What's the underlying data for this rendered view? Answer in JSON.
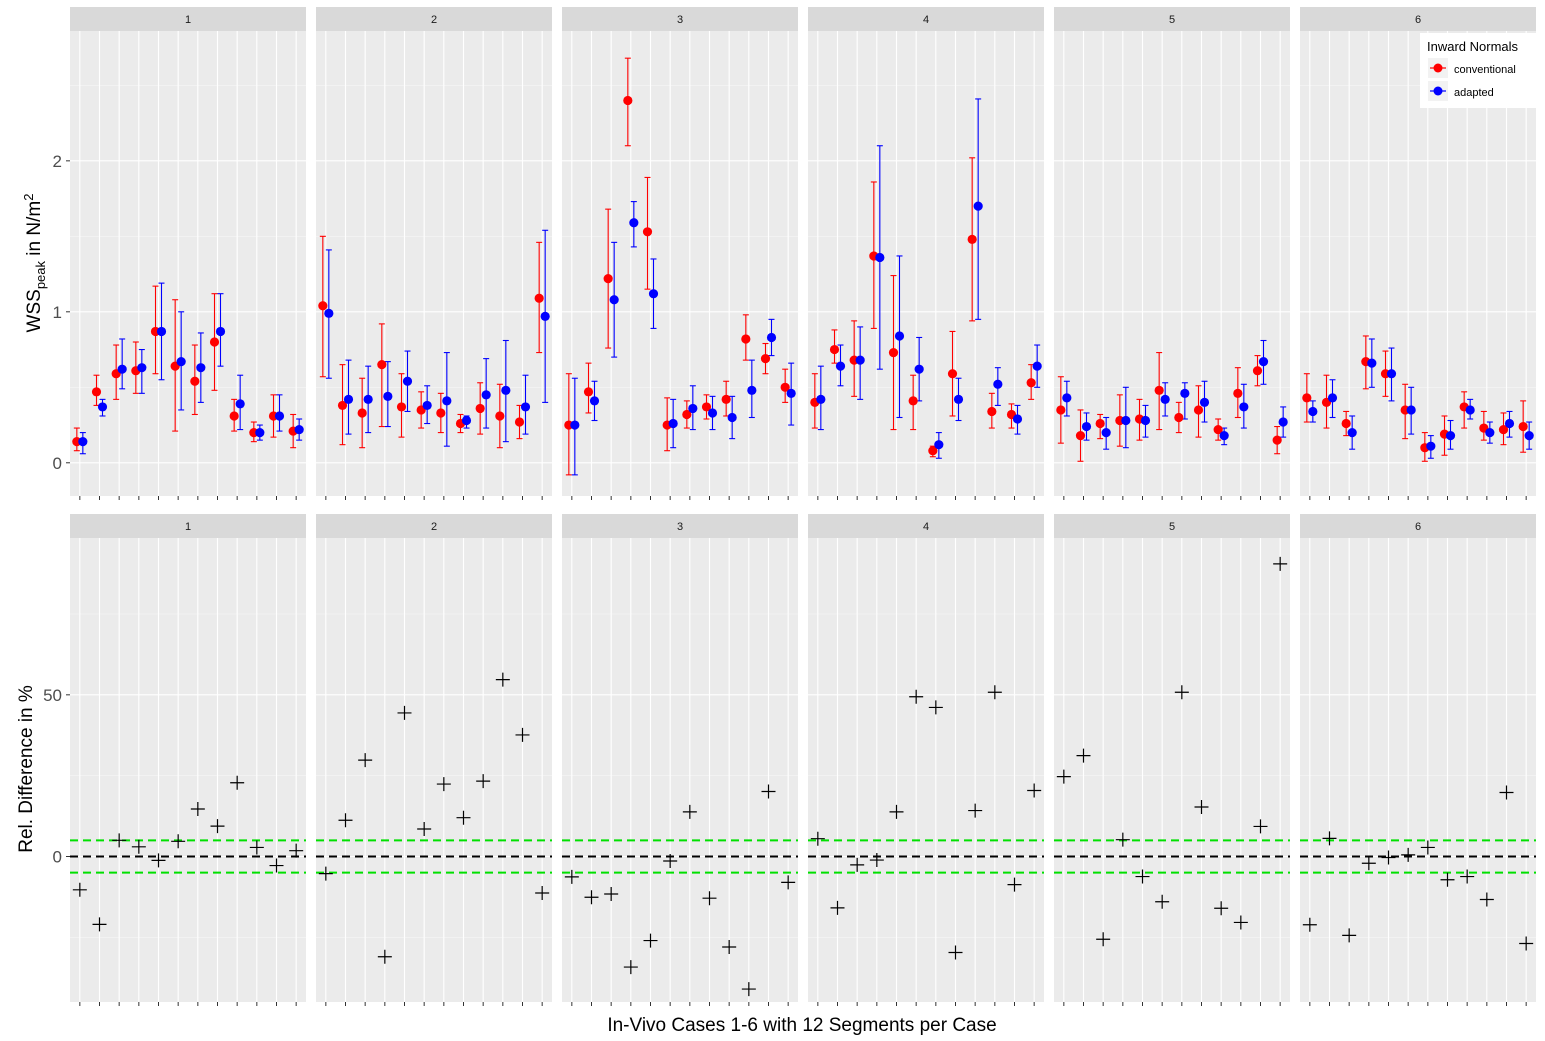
{
  "chart_data": [
    {
      "type": "scatter",
      "title": "",
      "ylabel": "WSS",
      "ylabel_sub": "peak",
      "ylabel_unit": " in N/m",
      "ylabel_sup": "2",
      "xlabel": "",
      "ylim": [
        -0.22,
        2.86
      ],
      "yticks": [
        0,
        1,
        2
      ],
      "ytick_labels": [
        "0",
        "1",
        "2"
      ],
      "facets": [
        "1",
        "2",
        "3",
        "4",
        "5",
        "6"
      ],
      "segments_per_facet": 12,
      "legend": {
        "title": "Inward Normals",
        "position": "top-right",
        "entries": [
          {
            "name": "conventional",
            "color": "#ff0000"
          },
          {
            "name": "adapted",
            "color": "#0000ff"
          }
        ]
      },
      "series": [
        {
          "name": "conventional",
          "color": "#ff0000",
          "values": [
            [
              0.14,
              0.47,
              0.59,
              0.61,
              0.87,
              0.64,
              0.54,
              0.8,
              0.31,
              0.2,
              0.31,
              0.21
            ],
            [
              1.04,
              0.38,
              0.33,
              0.65,
              0.37,
              0.35,
              0.33,
              0.26,
              0.36,
              0.31,
              0.27,
              1.09
            ],
            [
              0.25,
              0.47,
              1.22,
              2.4,
              1.53,
              0.25,
              0.32,
              0.37,
              0.42,
              0.82,
              0.69,
              0.5
            ],
            [
              0.4,
              0.75,
              0.68,
              1.37,
              0.73,
              0.41,
              0.08,
              0.59,
              1.48,
              0.34,
              0.32,
              0.53
            ],
            [
              0.35,
              0.18,
              0.26,
              0.28,
              0.29,
              0.48,
              0.3,
              0.35,
              0.22,
              0.46,
              0.61,
              0.15
            ],
            [
              0.43,
              0.4,
              0.26,
              0.67,
              0.59,
              0.35,
              0.1,
              0.19,
              0.37,
              0.23,
              0.22,
              0.24
            ]
          ],
          "err_low": [
            [
              0.08,
              0.38,
              0.42,
              0.46,
              0.59,
              0.21,
              0.32,
              0.48,
              0.21,
              0.14,
              0.17,
              0.1
            ],
            [
              0.57,
              0.12,
              0.1,
              0.24,
              0.17,
              0.23,
              0.2,
              0.2,
              0.19,
              0.1,
              0.16,
              0.73
            ],
            [
              -0.08,
              0.33,
              0.76,
              2.1,
              1.15,
              0.08,
              0.23,
              0.29,
              0.31,
              0.68,
              0.59,
              0.4
            ],
            [
              0.23,
              0.66,
              0.44,
              0.89,
              0.22,
              0.22,
              0.04,
              0.31,
              0.94,
              0.23,
              0.23,
              0.42
            ],
            [
              0.13,
              0.01,
              0.16,
              0.11,
              0.15,
              0.22,
              0.2,
              0.17,
              0.15,
              0.3,
              0.51,
              0.06
            ],
            [
              0.27,
              0.23,
              0.18,
              0.49,
              0.44,
              0.16,
              0.01,
              0.05,
              0.23,
              0.15,
              0.12,
              0.07
            ]
          ],
          "err_high": [
            [
              0.23,
              0.58,
              0.78,
              0.8,
              1.17,
              1.08,
              0.78,
              1.12,
              0.42,
              0.27,
              0.45,
              0.32
            ],
            [
              1.5,
              0.65,
              0.56,
              0.92,
              0.59,
              0.47,
              0.46,
              0.32,
              0.53,
              0.52,
              0.38,
              1.46
            ],
            [
              0.59,
              0.66,
              1.68,
              2.68,
              1.89,
              0.43,
              0.41,
              0.45,
              0.54,
              0.98,
              0.79,
              0.62
            ],
            [
              0.59,
              0.88,
              0.94,
              1.86,
              1.24,
              0.58,
              0.11,
              0.87,
              2.02,
              0.46,
              0.39,
              0.65
            ],
            [
              0.57,
              0.35,
              0.32,
              0.45,
              0.42,
              0.73,
              0.4,
              0.51,
              0.29,
              0.63,
              0.71,
              0.24
            ],
            [
              0.59,
              0.58,
              0.34,
              0.84,
              0.74,
              0.52,
              0.2,
              0.31,
              0.47,
              0.34,
              0.33,
              0.41
            ]
          ]
        },
        {
          "name": "adapted",
          "color": "#0000ff",
          "values": [
            [
              0.14,
              0.37,
              0.62,
              0.63,
              0.87,
              0.67,
              0.63,
              0.87,
              0.39,
              0.2,
              0.31,
              0.22
            ],
            [
              0.99,
              0.42,
              0.42,
              0.44,
              0.54,
              0.38,
              0.41,
              0.28,
              0.45,
              0.48,
              0.37,
              0.97
            ],
            [
              0.25,
              0.41,
              1.08,
              1.59,
              1.12,
              0.26,
              0.36,
              0.33,
              0.3,
              0.48,
              0.83,
              0.46
            ],
            [
              0.42,
              0.64,
              0.68,
              1.36,
              0.84,
              0.62,
              0.12,
              0.42,
              1.7,
              0.52,
              0.29,
              0.64
            ],
            [
              0.43,
              0.24,
              0.2,
              0.28,
              0.28,
              0.42,
              0.46,
              0.4,
              0.18,
              0.37,
              0.67,
              0.27
            ],
            [
              0.34,
              0.43,
              0.2,
              0.66,
              0.59,
              0.35,
              0.11,
              0.18,
              0.35,
              0.2,
              0.26,
              0.18
            ]
          ],
          "err_low": [
            [
              0.06,
              0.31,
              0.49,
              0.46,
              0.55,
              0.35,
              0.4,
              0.64,
              0.22,
              0.15,
              0.21,
              0.15
            ],
            [
              0.56,
              0.19,
              0.2,
              0.24,
              0.34,
              0.26,
              0.11,
              0.23,
              0.23,
              0.14,
              0.19,
              0.4
            ],
            [
              -0.08,
              0.28,
              0.7,
              1.43,
              0.89,
              0.1,
              0.22,
              0.22,
              0.16,
              0.3,
              0.71,
              0.25
            ],
            [
              0.22,
              0.51,
              0.42,
              0.62,
              0.3,
              0.41,
              0.03,
              0.28,
              0.95,
              0.38,
              0.19,
              0.5
            ],
            [
              0.31,
              0.15,
              0.09,
              0.1,
              0.17,
              0.31,
              0.29,
              0.27,
              0.12,
              0.23,
              0.52,
              0.17
            ],
            [
              0.27,
              0.3,
              0.09,
              0.5,
              0.41,
              0.19,
              0.03,
              0.09,
              0.29,
              0.13,
              0.17,
              0.09
            ]
          ],
          "err_high": [
            [
              0.2,
              0.42,
              0.82,
              0.75,
              1.19,
              1.0,
              0.86,
              1.12,
              0.58,
              0.25,
              0.45,
              0.29
            ],
            [
              1.41,
              0.68,
              0.64,
              0.67,
              0.74,
              0.51,
              0.73,
              0.31,
              0.69,
              0.81,
              0.58,
              1.54
            ],
            [
              0.56,
              0.54,
              1.46,
              1.73,
              1.35,
              0.42,
              0.51,
              0.44,
              0.44,
              0.68,
              0.95,
              0.66
            ],
            [
              0.64,
              0.78,
              0.9,
              2.1,
              1.37,
              0.83,
              0.2,
              0.56,
              2.41,
              0.63,
              0.38,
              0.78
            ],
            [
              0.54,
              0.33,
              0.3,
              0.5,
              0.38,
              0.53,
              0.53,
              0.54,
              0.23,
              0.52,
              0.81,
              0.37
            ],
            [
              0.41,
              0.55,
              0.31,
              0.82,
              0.76,
              0.5,
              0.18,
              0.28,
              0.42,
              0.27,
              0.34,
              0.27
            ]
          ]
        }
      ]
    },
    {
      "type": "scatter",
      "title": "",
      "ylabel": "Rel. Difference in %",
      "xlabel": "In-Vivo Cases 1-6 with 12 Segments per Case",
      "ylim": [
        -45.0,
        98.5
      ],
      "yticks": [
        0,
        50
      ],
      "ytick_labels": [
        "0",
        "50"
      ],
      "facets": [
        "1",
        "2",
        "3",
        "4",
        "5",
        "6"
      ],
      "segments_per_facet": 12,
      "reference_lines": [
        {
          "y": 0,
          "color": "#000000",
          "style": "dashed"
        },
        {
          "y": 5,
          "color": "#00e000",
          "style": "dashed"
        },
        {
          "y": -5,
          "color": "#00e000",
          "style": "dashed"
        }
      ],
      "marker": "cross",
      "values": [
        [
          -10.3,
          -21.0,
          5.0,
          3.0,
          -1.2,
          4.7,
          14.7,
          9.4,
          22.8,
          2.8,
          -2.8,
          1.8
        ],
        [
          -5.3,
          11.2,
          29.8,
          -31.0,
          44.4,
          8.5,
          22.4,
          12.0,
          23.3,
          54.7,
          37.6,
          -11.3
        ],
        [
          -6.3,
          -12.6,
          -11.6,
          -34.2,
          -26.0,
          -1.4,
          13.8,
          -12.9,
          -28.0,
          -41.0,
          20.1,
          -8.0
        ],
        [
          5.5,
          -15.9,
          -2.6,
          -1.1,
          13.8,
          49.4,
          46.1,
          -29.7,
          14.2,
          50.8,
          -8.7,
          20.4
        ],
        [
          24.7,
          31.2,
          -25.6,
          5.2,
          -6.2,
          -14.0,
          50.8,
          15.3,
          -16.0,
          -20.4,
          9.3,
          90.5
        ],
        [
          -21.1,
          5.6,
          -24.4,
          -2.1,
          -0.3,
          0.5,
          2.8,
          -7.2,
          -6.2,
          -13.3,
          19.8,
          -26.9
        ]
      ]
    }
  ]
}
